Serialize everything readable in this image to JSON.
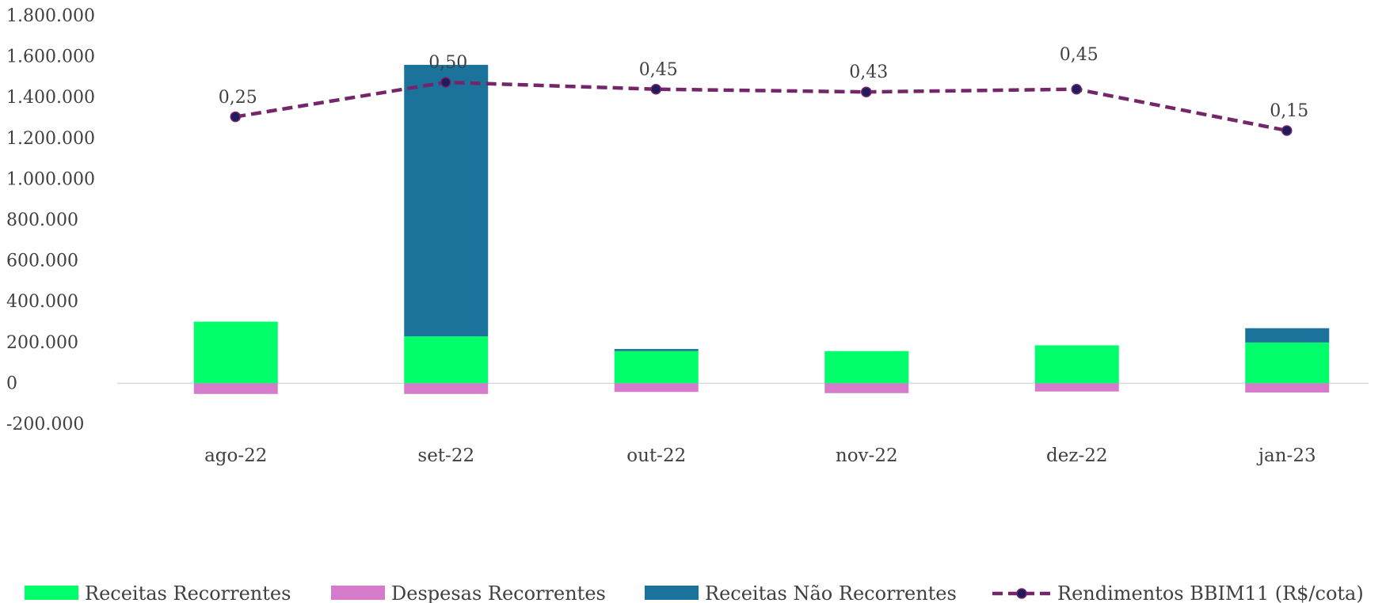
{
  "chart_data": {
    "type": "bar",
    "stacked": true,
    "categories": [
      "ago-22",
      "set-22",
      "out-22",
      "nov-22",
      "dez-22",
      "jan-23"
    ],
    "ylim": [
      -200000,
      1800000
    ],
    "y_ticks": [
      -200000,
      0,
      200000,
      400000,
      600000,
      800000,
      1000000,
      1200000,
      1400000,
      1600000,
      1800000
    ],
    "y_tick_labels": [
      "-200.000",
      "0",
      "200.000",
      "400.000",
      "600.000",
      "800.000",
      "1.000.000",
      "1.200.000",
      "1.400.000",
      "1.600.000",
      "1.800.000"
    ],
    "grid": false,
    "legend_position": "bottom",
    "series": [
      {
        "name": "Receitas Recorrentes",
        "type": "bar",
        "color": "#00FF6A",
        "values": [
          302000,
          230000,
          158000,
          158000,
          186000,
          200000
        ]
      },
      {
        "name": "Despesas Recorrentes",
        "type": "bar",
        "color": "#D67ACB",
        "values": [
          -52000,
          -52000,
          -42000,
          -48000,
          -40000,
          -45000
        ]
      },
      {
        "name": "Receitas Não Recorrentes",
        "type": "bar",
        "color": "#1B729A",
        "values": [
          0,
          1330000,
          10000,
          0,
          0,
          70000
        ]
      },
      {
        "name": "Rendimentos BBIM11 (R$/cota)",
        "type": "line",
        "axis": "secondary",
        "style": "dashed",
        "line_color": "#75266A",
        "marker_color": "#1F1B5C",
        "values": [
          0.25,
          0.5,
          0.45,
          0.43,
          0.45,
          0.15
        ],
        "labels": [
          "0,25",
          "0,50",
          "0,45",
          "0,43",
          "0,45",
          "0,15"
        ]
      }
    ]
  }
}
